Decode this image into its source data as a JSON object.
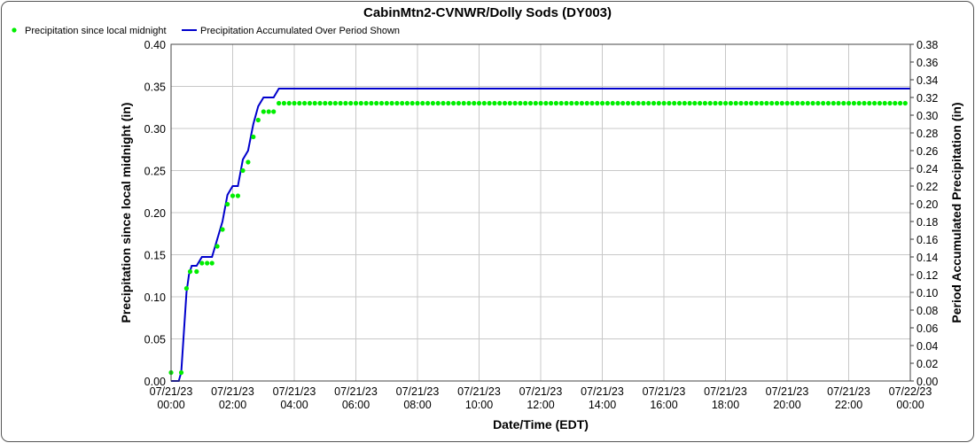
{
  "chart_data": {
    "type": "line",
    "title": "CabinMtn2-CVNWR/Dolly Sods (DY003)",
    "xlabel": "Date/Time (EDT)",
    "ylabel_left": "Precipitation since local midnight (in)",
    "ylabel_right": "Period Accumulated Precipitation (in)",
    "x_range_hours": [
      0,
      24
    ],
    "x_tick_labels": [
      {
        "date": "07/21/23",
        "time": "00:00"
      },
      {
        "date": "07/21/23",
        "time": "02:00"
      },
      {
        "date": "07/21/23",
        "time": "04:00"
      },
      {
        "date": "07/21/23",
        "time": "06:00"
      },
      {
        "date": "07/21/23",
        "time": "08:00"
      },
      {
        "date": "07/21/23",
        "time": "10:00"
      },
      {
        "date": "07/21/23",
        "time": "12:00"
      },
      {
        "date": "07/21/23",
        "time": "14:00"
      },
      {
        "date": "07/21/23",
        "time": "16:00"
      },
      {
        "date": "07/21/23",
        "time": "18:00"
      },
      {
        "date": "07/21/23",
        "time": "20:00"
      },
      {
        "date": "07/21/23",
        "time": "22:00"
      },
      {
        "date": "07/22/23",
        "time": "00:00"
      }
    ],
    "ylim_left": [
      0,
      0.4
    ],
    "y_ticks_left": [
      "0.00",
      "0.05",
      "0.10",
      "0.15",
      "0.20",
      "0.25",
      "0.30",
      "0.35",
      "0.40"
    ],
    "ylim_right": [
      0,
      0.38
    ],
    "y_ticks_right": [
      "0.00",
      "0.02",
      "0.04",
      "0.06",
      "0.08",
      "0.10",
      "0.12",
      "0.14",
      "0.16",
      "0.18",
      "0.20",
      "0.22",
      "0.24",
      "0.26",
      "0.28",
      "0.30",
      "0.32",
      "0.34",
      "0.36",
      "0.38"
    ],
    "grid": true,
    "legend_position": "top-left",
    "series": [
      {
        "name": "Precipitation since local midnight",
        "style": "dots",
        "color": "#00ee00",
        "axis": "left",
        "points": [
          [
            0.0,
            0.01
          ],
          [
            0.33,
            0.01
          ],
          [
            0.5,
            0.11
          ],
          [
            0.62,
            0.13
          ],
          [
            0.83,
            0.13
          ],
          [
            1.0,
            0.14
          ],
          [
            1.17,
            0.14
          ],
          [
            1.33,
            0.14
          ],
          [
            1.5,
            0.16
          ],
          [
            1.67,
            0.18
          ],
          [
            1.83,
            0.21
          ],
          [
            2.0,
            0.22
          ],
          [
            2.17,
            0.22
          ],
          [
            2.33,
            0.25
          ],
          [
            2.5,
            0.26
          ],
          [
            2.67,
            0.29
          ],
          [
            2.83,
            0.31
          ],
          [
            3.0,
            0.32
          ],
          [
            3.17,
            0.32
          ],
          [
            3.33,
            0.32
          ],
          [
            3.5,
            0.33
          ]
        ],
        "constant_after": {
          "start_hour": 3.5,
          "end_hour": 24.0,
          "step_hours": 0.1667,
          "value": 0.33
        }
      },
      {
        "name": "Precipitation Accumulated Over Period Shown",
        "style": "line",
        "color": "#0000cc",
        "axis": "right",
        "points": [
          [
            0.0,
            0.0
          ],
          [
            0.25,
            0.0
          ],
          [
            0.33,
            0.01
          ],
          [
            0.5,
            0.1
          ],
          [
            0.58,
            0.12
          ],
          [
            0.67,
            0.13
          ],
          [
            0.83,
            0.13
          ],
          [
            1.0,
            0.14
          ],
          [
            1.33,
            0.14
          ],
          [
            1.5,
            0.16
          ],
          [
            1.67,
            0.18
          ],
          [
            1.83,
            0.21
          ],
          [
            2.0,
            0.22
          ],
          [
            2.17,
            0.22
          ],
          [
            2.33,
            0.25
          ],
          [
            2.5,
            0.26
          ],
          [
            2.67,
            0.29
          ],
          [
            2.83,
            0.31
          ],
          [
            3.0,
            0.32
          ],
          [
            3.33,
            0.32
          ],
          [
            3.5,
            0.33
          ],
          [
            24.0,
            0.33
          ]
        ]
      }
    ]
  }
}
